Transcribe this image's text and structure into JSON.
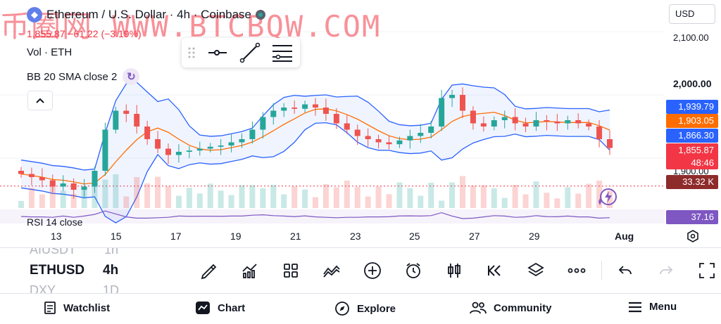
{
  "header": {
    "symbol_title": "Ethereum / U.S. Dollar · 4h · Coinbase",
    "quote": "1,855.87 −61.22 (−3.19%)",
    "volume_label": "Vol · ETH",
    "bb_label": "BB 20 SMA close 2",
    "rsi_label": "RSI 14 close",
    "currency": "USD"
  },
  "watermark": "币圈网 WWW.BTCBQW.COM",
  "price_axis": {
    "ticks": [
      "2,100.00",
      "2,000.00",
      "1,900.00"
    ],
    "tags": [
      {
        "label": "1,939.79",
        "color": "#2962ff"
      },
      {
        "label": "1,903.05",
        "color": "#ff6d00"
      },
      {
        "label": "1,866.30",
        "color": "#2962ff"
      },
      {
        "label": "1,855.87",
        "color": "#f23645"
      },
      {
        "label": "48:46",
        "color": "#f23645"
      },
      {
        "label": "33.32 K",
        "color": "#8e2b2b"
      },
      {
        "label": "37.16",
        "color": "#7e57c2"
      }
    ]
  },
  "time_axis": [
    "13",
    "15",
    "17",
    "19",
    "21",
    "23",
    "25",
    "27",
    "29",
    "Aug"
  ],
  "chart_data": {
    "type": "candlestick",
    "x": [
      "Jul 12",
      "Jul 12",
      "Jul 13",
      "Jul 13",
      "Jul 13",
      "Jul 14",
      "Jul 14",
      "Jul 14",
      "Jul 15",
      "Jul 15",
      "Jul 15",
      "Jul 16",
      "Jul 16",
      "Jul 16",
      "Jul 17",
      "Jul 17",
      "Jul 17",
      "Jul 18",
      "Jul 18",
      "Jul 18",
      "Jul 19",
      "Jul 19",
      "Jul 19",
      "Jul 20",
      "Jul 20",
      "Jul 20",
      "Jul 21",
      "Jul 21",
      "Jul 21",
      "Jul 22",
      "Jul 22",
      "Jul 22",
      "Jul 23",
      "Jul 23",
      "Jul 23",
      "Jul 24",
      "Jul 24",
      "Jul 24",
      "Jul 25",
      "Jul 25",
      "Jul 25",
      "Jul 26",
      "Jul 26",
      "Jul 26",
      "Jul 27",
      "Jul 27",
      "Jul 27",
      "Jul 28",
      "Jul 28",
      "Jul 28",
      "Jul 29",
      "Jul 29",
      "Jul 29",
      "Jul 30",
      "Jul 30",
      "Jul 30",
      "Jul 31"
    ],
    "close": [
      1875,
      1870,
      1865,
      1855,
      1860,
      1850,
      1855,
      1880,
      1945,
      1975,
      1970,
      1950,
      1930,
      1915,
      1905,
      1910,
      1912,
      1915,
      1918,
      1920,
      1925,
      1930,
      1945,
      1965,
      1975,
      1980,
      1978,
      1985,
      1980,
      1970,
      1955,
      1945,
      1935,
      1930,
      1925,
      1922,
      1928,
      1935,
      1940,
      1950,
      1995,
      2000,
      1975,
      1955,
      1950,
      1960,
      1965,
      1955,
      1950,
      1960,
      1958,
      1955,
      1960,
      1955,
      1950,
      1930,
      1916
    ],
    "bb_upper": 1939.79,
    "bb_middle": 1903.05,
    "bb_lower": 1866.3,
    "last_price": 1855.87,
    "volume_last": "33.32 K",
    "rsi_last": 37.16,
    "y_range": [
      1800,
      2150
    ]
  },
  "drawing_toolbar": {
    "items": [
      "drag-handle-icon",
      "horizontal-ray-icon",
      "trend-line-icon",
      "fib-levels-icon"
    ]
  },
  "toolbar": {
    "symbols": [
      {
        "symbol": "AIUSDT",
        "interval": "1h",
        "state": "dim"
      },
      {
        "symbol": "ETHUSD",
        "interval": "4h",
        "state": "active"
      },
      {
        "symbol": "DXY",
        "interval": "1D",
        "state": "dim"
      }
    ],
    "tools": [
      "brush-icon",
      "indicators-icon",
      "templates-icon",
      "compare-icon",
      "add-icon",
      "alert-icon",
      "candles-icon",
      "replay-icon",
      "layers-icon",
      "more-icon",
      "undo-icon",
      "redo-icon",
      "fullscreen-icon"
    ]
  },
  "bottom_nav": {
    "items": [
      "Watchlist",
      "Chart",
      "Explore",
      "Community",
      "Menu"
    ]
  }
}
